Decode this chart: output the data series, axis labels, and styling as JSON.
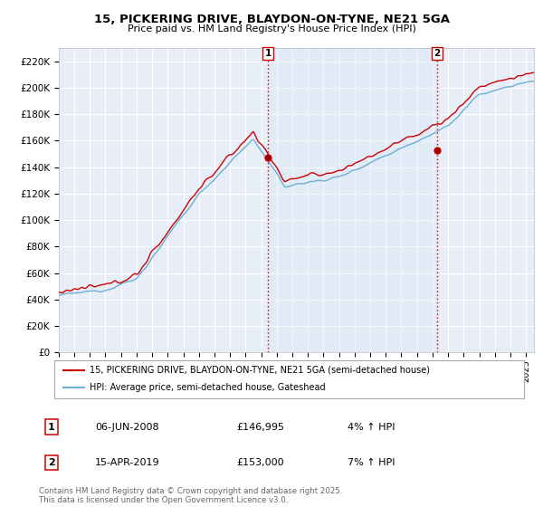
{
  "title_line1": "15, PICKERING DRIVE, BLAYDON-ON-TYNE, NE21 5GA",
  "title_line2": "Price paid vs. HM Land Registry's House Price Index (HPI)",
  "ylabel_ticks": [
    "£0",
    "£20K",
    "£40K",
    "£60K",
    "£80K",
    "£100K",
    "£120K",
    "£140K",
    "£160K",
    "£180K",
    "£200K",
    "£220K"
  ],
  "ytick_values": [
    0,
    20000,
    40000,
    60000,
    80000,
    100000,
    120000,
    140000,
    160000,
    180000,
    200000,
    220000
  ],
  "ylim": [
    0,
    230000
  ],
  "xlim_start": 1995.0,
  "xlim_end": 2025.5,
  "hpi_color": "#6baed6",
  "price_color": "#cc0000",
  "vline_color": "#cc0000",
  "shade_color": "#d6e8f5",
  "marker1_x": 2008.43,
  "marker2_x": 2019.29,
  "marker1_price": 146995,
  "marker2_price": 153000,
  "legend_line1": "15, PICKERING DRIVE, BLAYDON-ON-TYNE, NE21 5GA (semi-detached house)",
  "legend_line2": "HPI: Average price, semi-detached house, Gateshead",
  "table_row1_num": "1",
  "table_row1_date": "06-JUN-2008",
  "table_row1_price": "£146,995",
  "table_row1_hpi": "4% ↑ HPI",
  "table_row2_num": "2",
  "table_row2_date": "15-APR-2019",
  "table_row2_price": "£153,000",
  "table_row2_hpi": "7% ↑ HPI",
  "footer": "Contains HM Land Registry data © Crown copyright and database right 2025.\nThis data is licensed under the Open Government Licence v3.0.",
  "bg_color": "#ffffff",
  "plot_bg_color": "#e8eef8",
  "grid_color": "#ffffff",
  "xtick_years": [
    1995,
    1996,
    1997,
    1998,
    1999,
    2000,
    2001,
    2002,
    2003,
    2004,
    2005,
    2006,
    2007,
    2008,
    2009,
    2010,
    2011,
    2012,
    2013,
    2014,
    2015,
    2016,
    2017,
    2018,
    2019,
    2020,
    2021,
    2022,
    2023,
    2024,
    2025
  ]
}
